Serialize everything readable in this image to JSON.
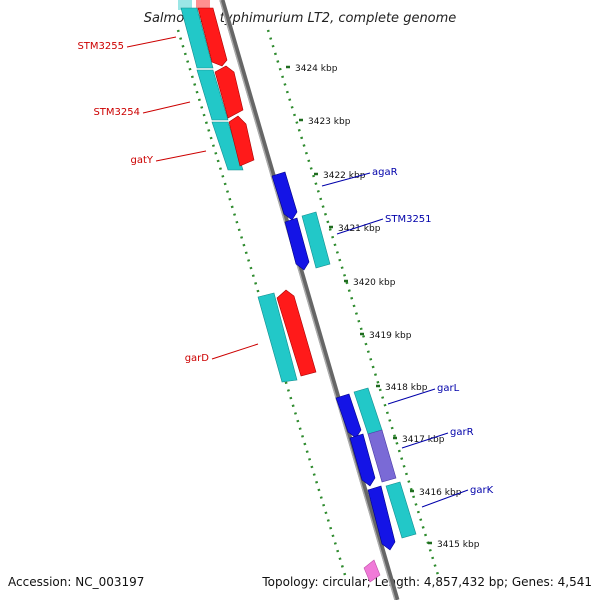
{
  "title": "Salmonella typhimurium LT2, complete genome",
  "footer": {
    "accession": "Accession: NC_003197",
    "topology": "Topology: circular; Length: 4,857,432 bp; Genes: 4,541"
  },
  "colors": {
    "backbone": "#888888",
    "ticks": "#2e8b2e",
    "major_ticks": "#1f6b1f",
    "cyan_feature": "#22c8c8",
    "red_feature": "#ff1a1a",
    "blue_feature": "#1414e6",
    "purple_feature": "#7a6ad6",
    "pink_feature": "#f07ad8",
    "left_label": "#cc0000",
    "right_label": "#0000aa"
  },
  "scale_labels": [
    "3424 kbp",
    "3423 kbp",
    "3422 kbp",
    "3421 kbp",
    "3420 kbp",
    "3419 kbp",
    "3418 kbp",
    "3417 kbp",
    "3416 kbp",
    "3415 kbp"
  ],
  "left_labels": [
    "STM3255",
    "STM3254",
    "gatY",
    "garD"
  ],
  "right_labels": [
    "agaR",
    "STM3251",
    "garL",
    "garR",
    "garK"
  ]
}
